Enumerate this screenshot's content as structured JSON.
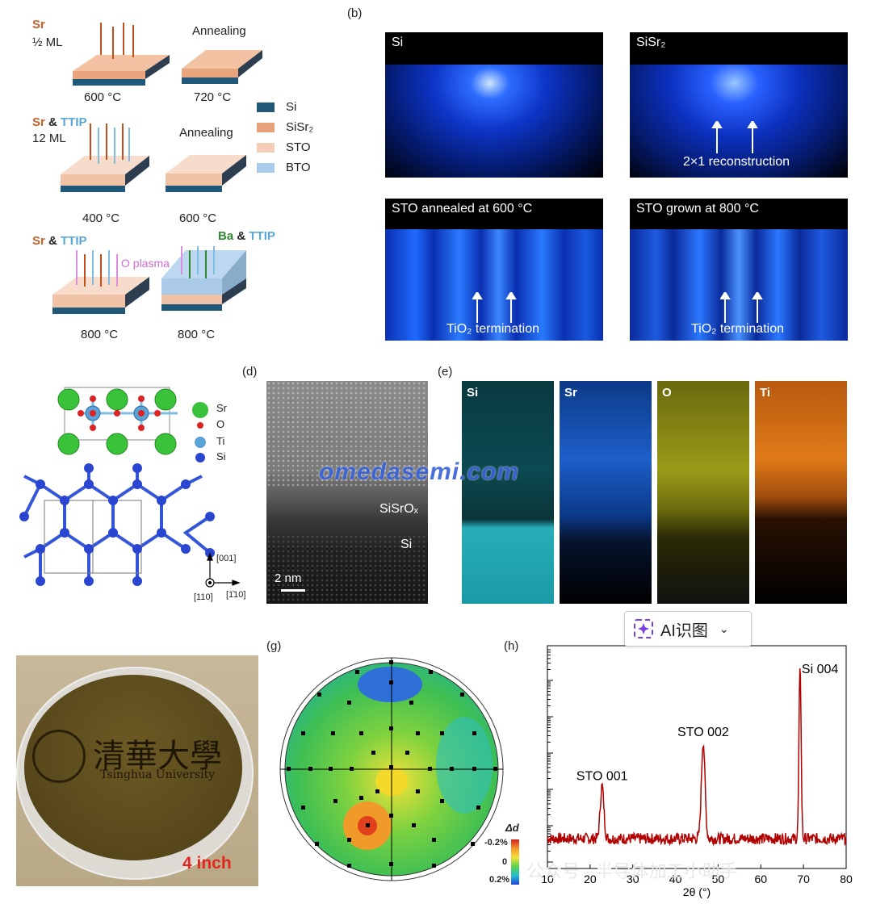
{
  "panel_a": {
    "row1": {
      "label1": "Sr",
      "label2": "½ ML",
      "temp_left": "600 °C",
      "annealing": "Annealing",
      "temp_right": "720 °C"
    },
    "row2": {
      "label_sr": "Sr",
      "label_amp": "&",
      "label_ttip": "TTIP",
      "label_ml": "12 ML",
      "temp_left": "400 °C",
      "annealing": "Annealing",
      "temp_right": "600 °C"
    },
    "row3": {
      "label_sr": "Sr",
      "label_amp": "&",
      "label_ttip": "TTIP",
      "oplasma": "O plasma",
      "label_ba": "Ba",
      "label_amp2": "&",
      "label_ttip2": "TTIP",
      "temp_left": "800 °C",
      "temp_right": "800 °C"
    },
    "legend": [
      {
        "name": "Si",
        "color": "#1f5878"
      },
      {
        "name": "SiSr₂",
        "color": "#e8a07a"
      },
      {
        "name": "STO",
        "color": "#f3cdb5"
      },
      {
        "name": "BTO",
        "color": "#a9cbe9"
      }
    ]
  },
  "panel_b": {
    "letter": "(b)",
    "images": [
      {
        "title": "Si"
      },
      {
        "title": "SiSr₂",
        "caption": "2×1 reconstruction"
      },
      {
        "title": "STO annealed at 600 °C",
        "caption": "TiO₂ termination"
      },
      {
        "title": "STO grown at 800 °C",
        "caption": "TiO₂ termination"
      }
    ]
  },
  "panel_c": {
    "legend": [
      "Sr",
      "O",
      "Ti",
      "Si"
    ],
    "axis_up": "[001]",
    "axis_left": "[110]",
    "axis_right": "[1̄10]"
  },
  "panel_d": {
    "letter": "(d)",
    "label_interface": "SiSrOₓ",
    "label_si": "Si",
    "scale": "2 nm"
  },
  "panel_e": {
    "letter": "(e)",
    "maps": [
      "Si",
      "Sr",
      "O",
      "Ti"
    ]
  },
  "panel_f": {
    "logo_cn": "清華大學",
    "logo_en": "Tsinghua University",
    "size": "4 inch"
  },
  "panel_g": {
    "letter": "(g)",
    "colorbar_title": "Δd",
    "colorbar_top": "-0.2%",
    "colorbar_mid": "0",
    "colorbar_bot": "0.2%"
  },
  "panel_h": {
    "letter": "(h)"
  },
  "watermark": "omedasemi.com",
  "ai_button": {
    "label": "AI识图"
  },
  "wechat_mark": "公众号 · 半导体加工小助手",
  "chart_data": {
    "type": "line",
    "xlabel": "2θ (°)",
    "xlim": [
      10,
      80
    ],
    "x_ticks": [
      10,
      20,
      30,
      40,
      50,
      60,
      70,
      80
    ],
    "ylabel": "",
    "y_scale": "log",
    "peaks": [
      {
        "label": "STO 001",
        "x": 22.8,
        "rel_height": 0.3
      },
      {
        "label": "STO 002",
        "x": 46.5,
        "rel_height": 0.55
      },
      {
        "label": "Si 004",
        "x": 69.2,
        "rel_height": 1.0
      }
    ],
    "color": "#b00000"
  }
}
